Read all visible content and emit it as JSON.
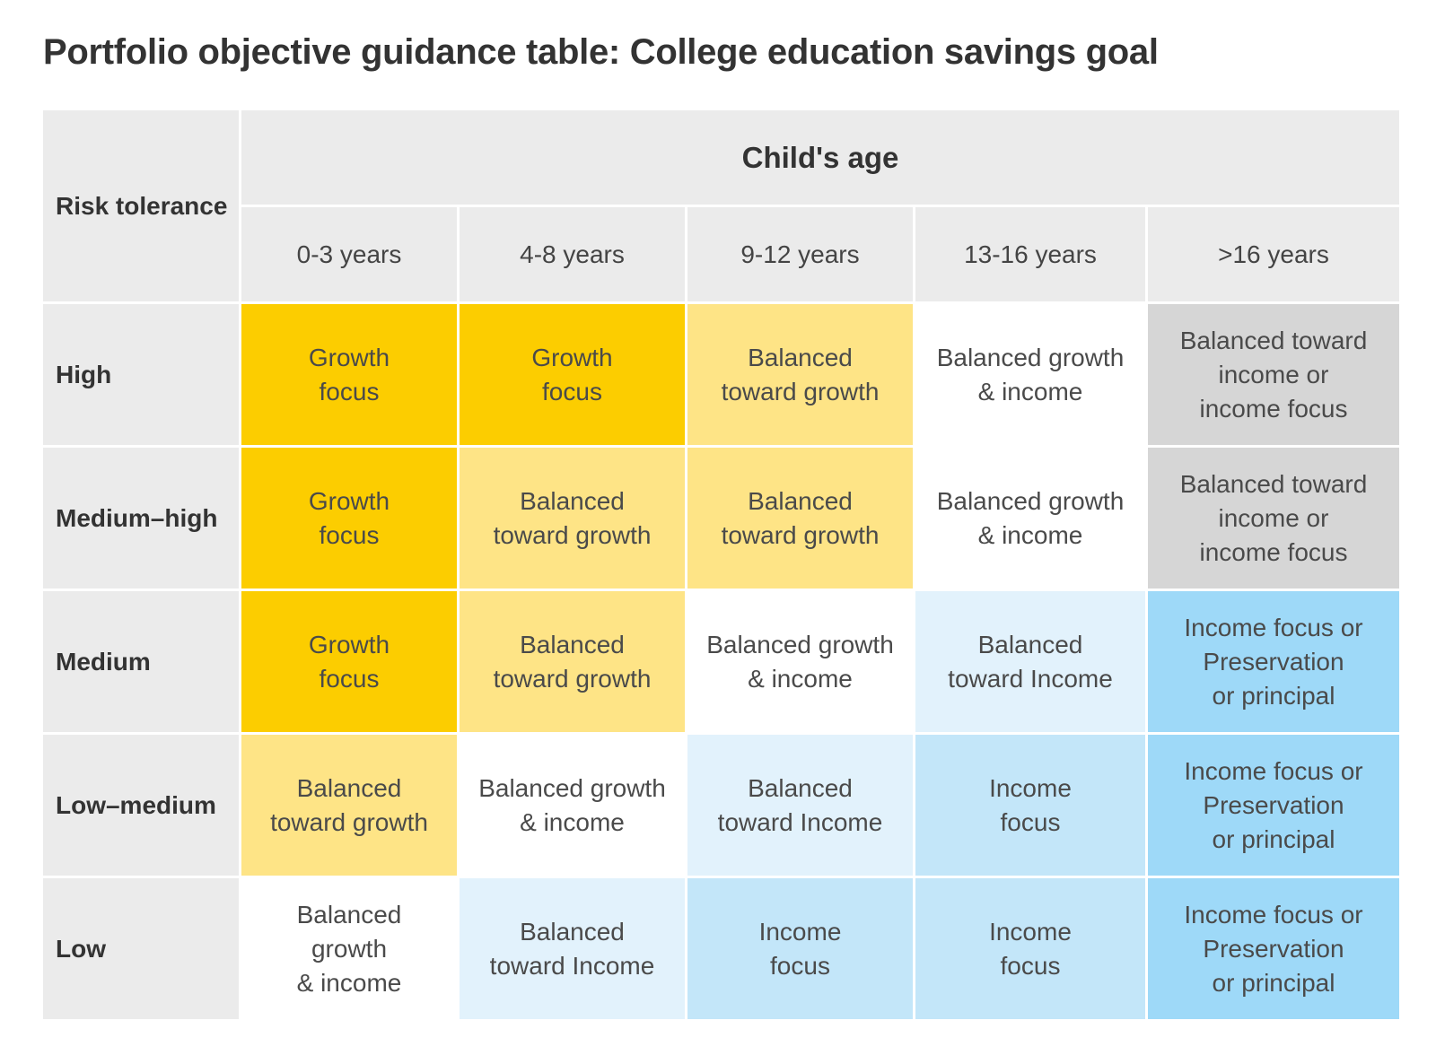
{
  "title": "Portfolio objective guidance table:  College education savings goal",
  "chart_data": {
    "type": "table",
    "title": "Portfolio objective guidance table:  College education savings goal",
    "row_header": "Risk tolerance",
    "column_group_header": "Child's age",
    "columns": [
      "0-3 years",
      "4-8 years",
      "9-12 years",
      "13-16 years",
      ">16 years"
    ],
    "rows": [
      {
        "label": "High",
        "cells": [
          {
            "text": "Growth\nfocus",
            "color": "#fccd00"
          },
          {
            "text": "Growth\nfocus",
            "color": "#fccd00"
          },
          {
            "text": "Balanced\ntoward growth",
            "color": "#fee486"
          },
          {
            "text": "Balanced growth\n& income",
            "color": "#ffffff"
          },
          {
            "text": "Balanced toward\nincome or\nincome focus",
            "color": "#d6d6d6"
          }
        ]
      },
      {
        "label": "Medium–high",
        "cells": [
          {
            "text": "Growth\nfocus",
            "color": "#fccd00"
          },
          {
            "text": "Balanced\ntoward growth",
            "color": "#fee486"
          },
          {
            "text": "Balanced\ntoward growth",
            "color": "#fee486"
          },
          {
            "text": "Balanced growth\n& income",
            "color": "#ffffff"
          },
          {
            "text": "Balanced toward\nincome or\nincome focus",
            "color": "#d6d6d6"
          }
        ]
      },
      {
        "label": "Medium",
        "cells": [
          {
            "text": "Growth\nfocus",
            "color": "#fccd00"
          },
          {
            "text": "Balanced\ntoward growth",
            "color": "#fee486"
          },
          {
            "text": "Balanced growth\n& income",
            "color": "#ffffff"
          },
          {
            "text": "Balanced\ntoward Income",
            "color": "#e2f2fc"
          },
          {
            "text": "Income focus or\nPreservation\nor principal",
            "color": "#9ed9f8"
          }
        ]
      },
      {
        "label": "Low–medium",
        "cells": [
          {
            "text": "Balanced\ntoward growth",
            "color": "#fee486"
          },
          {
            "text": "Balanced growth\n& income",
            "color": "#ffffff"
          },
          {
            "text": "Balanced\ntoward Income",
            "color": "#e2f2fc"
          },
          {
            "text": "Income\nfocus",
            "color": "#c3e6f9"
          },
          {
            "text": "Income focus or\nPreservation\nor principal",
            "color": "#9ed9f8"
          }
        ]
      },
      {
        "label": "Low",
        "cells": [
          {
            "text": "Balanced\ngrowth\n& income",
            "color": "#ffffff"
          },
          {
            "text": "Balanced\ntoward Income",
            "color": "#e2f2fc"
          },
          {
            "text": "Income\nfocus",
            "color": "#c3e6f9"
          },
          {
            "text": "Income\nfocus",
            "color": "#c3e6f9"
          },
          {
            "text": "Income focus or\nPreservation\nor principal",
            "color": "#9ed9f8"
          }
        ]
      }
    ]
  }
}
